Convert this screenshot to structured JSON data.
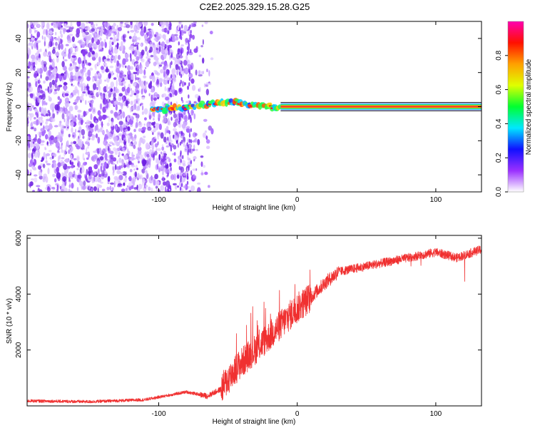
{
  "figure": {
    "title": "C2E2.2025.329.15.28.G25"
  },
  "colors": {
    "snr_line": "#f03030",
    "axis": "#000000",
    "carrier_core": "#ff3030",
    "carrier_edge": "#1020c0"
  },
  "chart_data": [
    {
      "type": "heatmap",
      "title": "C2E2.2025.329.15.28.G25",
      "xlabel": "Height of straight line (km)",
      "ylabel": "Frequency (Hz)",
      "xlim": [
        -195,
        133
      ],
      "ylim": [
        -50,
        50
      ],
      "xticks": [
        -100,
        0,
        100
      ],
      "yticks": [
        -40,
        -20,
        0,
        20,
        40
      ],
      "colorbar": {
        "label": "Normalized spectral amplitude",
        "range": [
          0,
          1
        ],
        "ticks": [
          "0.0",
          "0.2",
          "0.4",
          "0.6",
          "0.8"
        ],
        "colormap": [
          "#ffffff",
          "#9a30ff",
          "#1010ff",
          "#00e8ff",
          "#00ff30",
          "#e0ff00",
          "#ffa000",
          "#ff1000",
          "#ff00b0"
        ]
      },
      "noise_region": {
        "x_from": -195,
        "x_to": -65,
        "amplitude_approx": 0.05
      },
      "carrier": {
        "track": [
          {
            "x": -105,
            "f": -2
          },
          {
            "x": -90,
            "f": -1
          },
          {
            "x": -75,
            "f": 0
          },
          {
            "x": -60,
            "f": 2
          },
          {
            "x": -45,
            "f": 3
          },
          {
            "x": -30,
            "f": 1
          },
          {
            "x": -20,
            "f": 0
          },
          {
            "x": -12,
            "f": 0
          },
          {
            "x": 133,
            "f": 0
          }
        ],
        "steady_from_x": -12,
        "steady_amplitude": 0.85
      }
    },
    {
      "type": "line",
      "xlabel": "Height of straight line (km)",
      "ylabel": "SNR (10 * v/v)",
      "xlim": [
        -195,
        133
      ],
      "ylim": [
        0,
        6100
      ],
      "xticks": [
        -100,
        0,
        100
      ],
      "yticks": [
        2000,
        4000,
        6000
      ],
      "series": [
        {
          "name": "SNR",
          "trend": [
            {
              "x": -195,
              "y": 180
            },
            {
              "x": -150,
              "y": 150
            },
            {
              "x": -110,
              "y": 220
            },
            {
              "x": -80,
              "y": 500
            },
            {
              "x": -65,
              "y": 350
            },
            {
              "x": -55,
              "y": 600
            },
            {
              "x": -45,
              "y": 1300
            },
            {
              "x": -35,
              "y": 1800
            },
            {
              "x": -20,
              "y": 2500
            },
            {
              "x": -10,
              "y": 3000
            },
            {
              "x": 0,
              "y": 3500
            },
            {
              "x": 10,
              "y": 3900
            },
            {
              "x": 20,
              "y": 4400
            },
            {
              "x": 30,
              "y": 4800
            },
            {
              "x": 50,
              "y": 5000
            },
            {
              "x": 80,
              "y": 5300
            },
            {
              "x": 100,
              "y": 5500
            },
            {
              "x": 115,
              "y": 5300
            },
            {
              "x": 133,
              "y": 5600
            }
          ]
        }
      ]
    }
  ]
}
